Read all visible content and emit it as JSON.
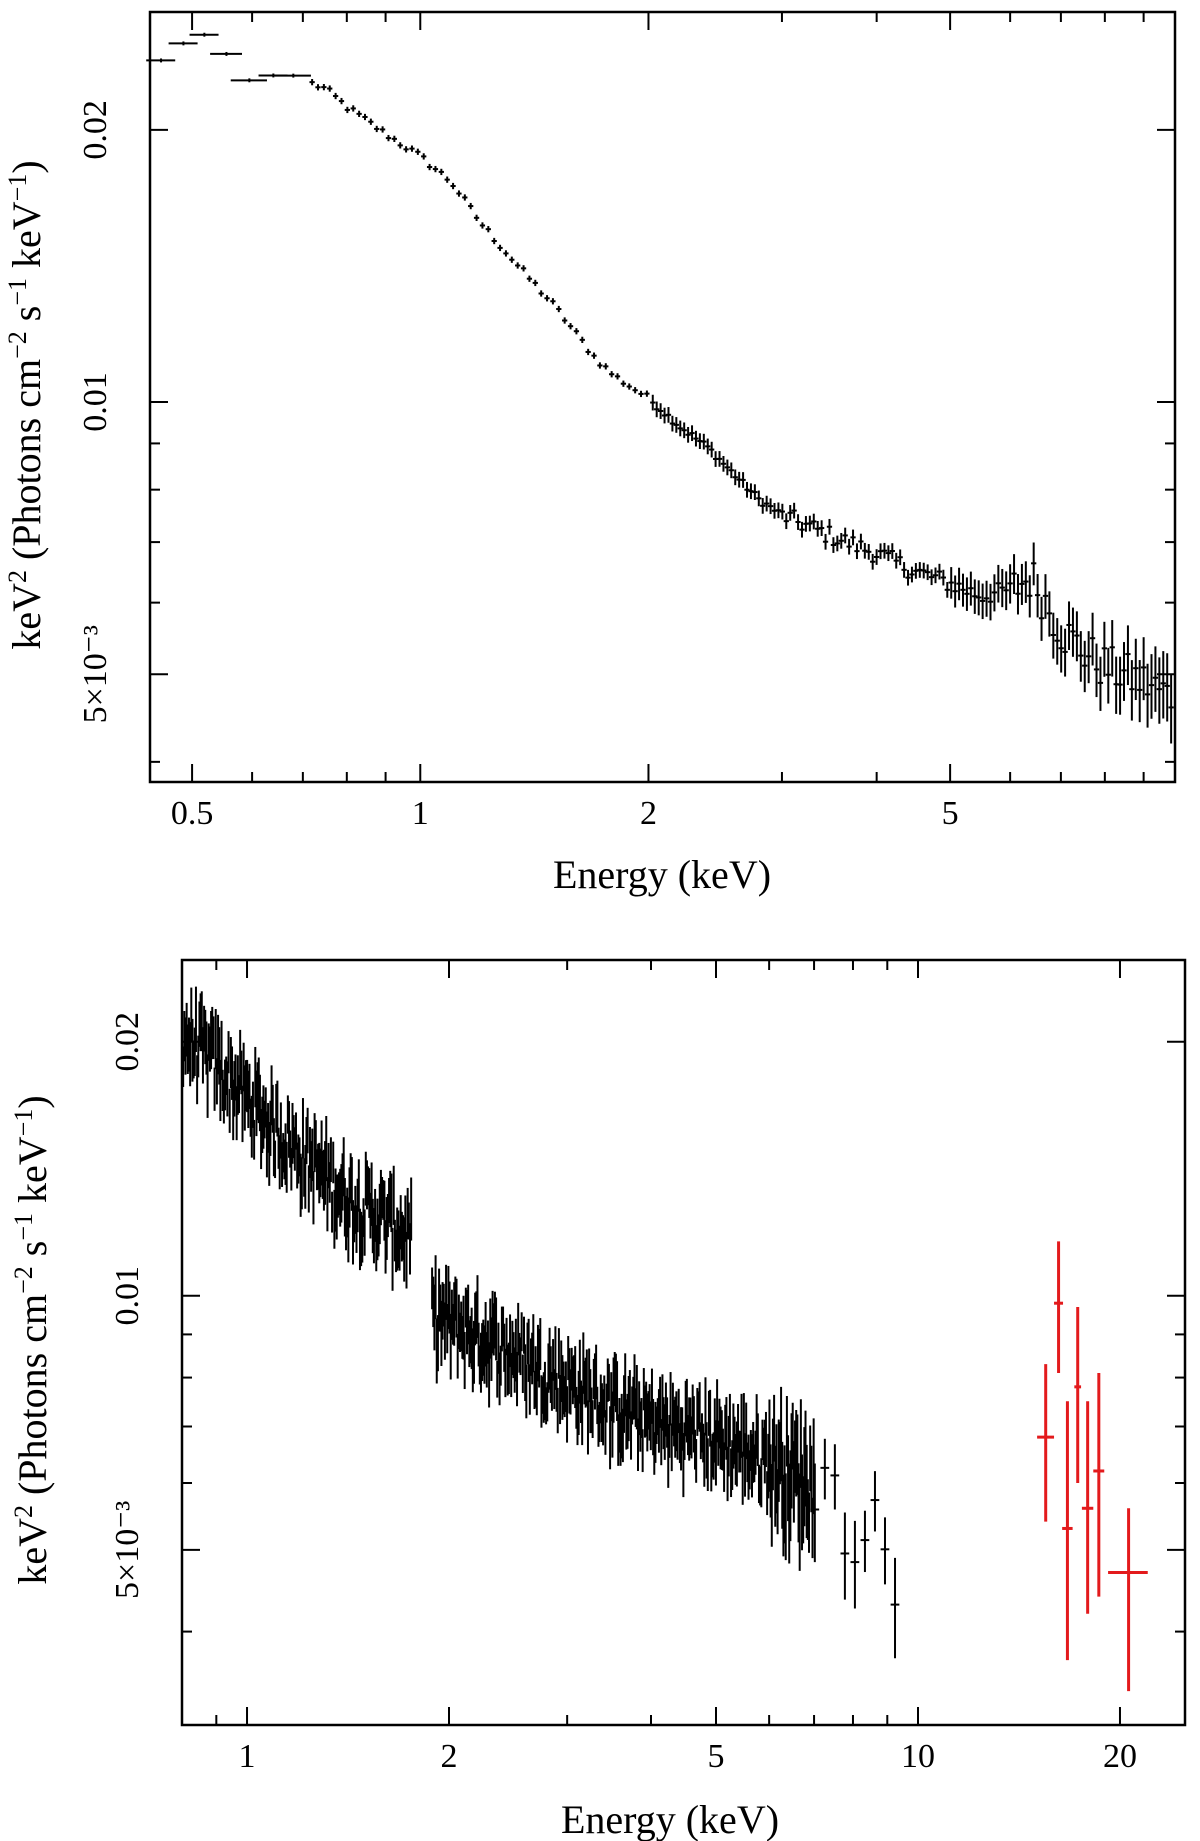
{
  "chart_data": [
    {
      "type": "scatter",
      "xlabel": "Energy (keV)",
      "ylabel_parts": {
        "base": "keV",
        "sq": "2",
        "open": " (Photons cm",
        "neg2": "−2",
        "s": " s",
        "neg1a": "−1",
        "kev": " keV",
        "neg1b": "−1",
        "close": ")"
      },
      "x_scale": "log",
      "y_scale": "log",
      "xlim": [
        0.44,
        9.9
      ],
      "ylim": [
        0.0038,
        0.027
      ],
      "x_ticks": [
        {
          "value": 0.5,
          "label": "0.5"
        },
        {
          "value": 1,
          "label": "1"
        },
        {
          "value": 2,
          "label": "2"
        },
        {
          "value": 5,
          "label": "5"
        }
      ],
      "y_ticks": [
        {
          "value": 0.005,
          "label": "5×10⁻³"
        },
        {
          "value": 0.01,
          "label": "0.01"
        },
        {
          "value": 0.02,
          "label": "0.02"
        }
      ],
      "color": "#000000",
      "series": [
        {
          "color": "#000000",
          "anchors": [
            [
              0.44,
              0.0233
            ],
            [
              0.48,
              0.0248
            ],
            [
              0.52,
              0.0255
            ],
            [
              0.56,
              0.0241
            ],
            [
              0.6,
              0.0225
            ],
            [
              0.66,
              0.0232
            ],
            [
              0.75,
              0.0222
            ],
            [
              0.8,
              0.0212
            ],
            [
              0.9,
              0.0198
            ],
            [
              1.0,
              0.0187
            ],
            [
              1.1,
              0.0175
            ],
            [
              1.2,
              0.0158
            ],
            [
              1.35,
              0.0141
            ],
            [
              1.5,
              0.0128
            ],
            [
              1.7,
              0.0112
            ],
            [
              1.8,
              0.0107
            ],
            [
              2.0,
              0.0101
            ],
            [
              2.2,
              0.0094
            ],
            [
              2.4,
              0.0089
            ],
            [
              2.6,
              0.0083
            ],
            [
              2.8,
              0.0078
            ],
            [
              3.0,
              0.0075
            ],
            [
              3.5,
              0.0071
            ],
            [
              4.0,
              0.0068
            ],
            [
              4.5,
              0.0065
            ],
            [
              5.0,
              0.0063
            ],
            [
              5.5,
              0.0061
            ],
            [
              6.0,
              0.0062
            ],
            [
              6.4,
              0.0064
            ],
            [
              6.7,
              0.006
            ],
            [
              7.0,
              0.0056
            ],
            [
              7.5,
              0.0053
            ],
            [
              8.0,
              0.0051
            ],
            [
              9.0,
              0.0049
            ],
            [
              9.9,
              0.0047
            ]
          ]
        }
      ]
    },
    {
      "type": "scatter",
      "xlabel": "Energy (keV)",
      "ylabel_parts": {
        "base": "keV",
        "sq": "2",
        "open": " (Photons cm",
        "neg2": "−2",
        "s": " s",
        "neg1a": "−1",
        "kev": " keV",
        "neg1b": "−1",
        "close": ")"
      },
      "x_scale": "log",
      "y_scale": "log",
      "xlim": [
        0.8,
        25
      ],
      "ylim": [
        0.0031,
        0.025
      ],
      "x_ticks": [
        {
          "value": 1,
          "label": "1"
        },
        {
          "value": 2,
          "label": "2"
        },
        {
          "value": 5,
          "label": "5"
        },
        {
          "value": 10,
          "label": "10"
        },
        {
          "value": 20,
          "label": "20"
        }
      ],
      "y_ticks": [
        {
          "value": 0.005,
          "label": "5×10⁻³"
        },
        {
          "value": 0.01,
          "label": "0.01"
        },
        {
          "value": 0.02,
          "label": "0.02"
        }
      ],
      "series": [
        {
          "color": "#000000",
          "anchors": [
            [
              0.8,
              0.0205
            ],
            [
              0.9,
              0.0188
            ],
            [
              1.0,
              0.0172
            ],
            [
              1.1,
              0.0158
            ],
            [
              1.2,
              0.0148
            ],
            [
              1.4,
              0.0132
            ],
            [
              1.6,
              0.0123
            ],
            [
              1.75,
              0.0118
            ],
            [
              1.9,
              0.0095
            ],
            [
              2.2,
              0.009
            ],
            [
              2.6,
              0.0084
            ],
            [
              3.0,
              0.0079
            ],
            [
              3.5,
              0.0074
            ],
            [
              4.0,
              0.0071
            ],
            [
              5.0,
              0.0068
            ],
            [
              6.0,
              0.0064
            ],
            [
              7.0,
              0.006
            ],
            [
              8.0,
              0.0055
            ],
            [
              9.0,
              0.005
            ],
            [
              9.5,
              0.0047
            ]
          ]
        },
        {
          "color": "#e31a1c",
          "points": [
            {
              "x": 15.5,
              "xerr": 0.45,
              "y": 0.0068,
              "ylo": 0.0054,
              "yhi": 0.0083
            },
            {
              "x": 16.2,
              "xerr": 0.25,
              "y": 0.0098,
              "ylo": 0.0081,
              "yhi": 0.0116
            },
            {
              "x": 16.7,
              "xerr": 0.3,
              "y": 0.0053,
              "ylo": 0.0037,
              "yhi": 0.0075
            },
            {
              "x": 17.3,
              "xerr": 0.2,
              "y": 0.0078,
              "ylo": 0.006,
              "yhi": 0.0097
            },
            {
              "x": 17.9,
              "xerr": 0.35,
              "y": 0.0056,
              "ylo": 0.0042,
              "yhi": 0.0075
            },
            {
              "x": 18.6,
              "xerr": 0.35,
              "y": 0.0062,
              "ylo": 0.0044,
              "yhi": 0.0081
            },
            {
              "x": 20.6,
              "xerr": 1.4,
              "y": 0.0047,
              "ylo": 0.0034,
              "yhi": 0.0056
            }
          ]
        }
      ]
    }
  ]
}
